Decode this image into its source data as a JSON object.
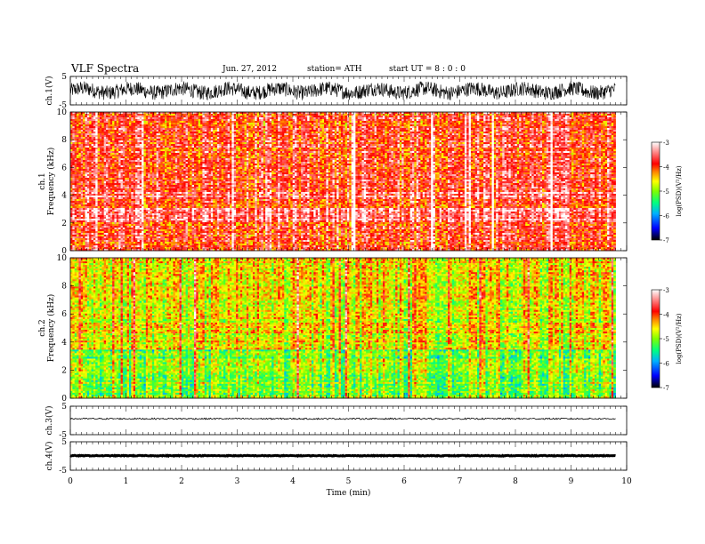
{
  "header": {
    "title": "VLF  Spectra",
    "date": "Jun. 27, 2012",
    "station": "station= ATH",
    "start": "start  UT  =   8  : 0  : 0"
  },
  "chart_data": [
    {
      "type": "line",
      "ylabel": "ch.1(V)",
      "ylim": [
        -5,
        5
      ],
      "yticks": [
        "5",
        "-5"
      ],
      "signal": "noisy waveform, mostly between -3 and +3 V"
    },
    {
      "type": "heatmap",
      "xlabel": "",
      "ylabel": "ch.1\nFrequency  (kHz)",
      "ylim": [
        0,
        10
      ],
      "yticks": [
        "0",
        "2",
        "4",
        "6",
        "8",
        "10"
      ],
      "colorbar": {
        "label": "log(PSD)(V²/Hz)",
        "ticks": [
          "-3",
          "-4",
          "-5",
          "-6",
          "-7"
        ],
        "range": [
          -7,
          -3
        ]
      },
      "dominant_log_psd": -3.8
    },
    {
      "type": "heatmap",
      "ylabel": "ch.2\nFrequency  (kHz)",
      "ylim": [
        0,
        10
      ],
      "yticks": [
        "0",
        "2",
        "4",
        "6",
        "8",
        "10"
      ],
      "colorbar": {
        "label": "log(PSD)(V²/Hz)",
        "ticks": [
          "-3",
          "-4",
          "-5",
          "-6",
          "-7"
        ],
        "range": [
          -7,
          -3
        ]
      },
      "dominant_log_psd": -4.6
    },
    {
      "type": "line",
      "ylabel": "ch.3(V)",
      "ylim": [
        -5,
        5
      ],
      "yticks": [
        "5",
        "-5"
      ],
      "signal": "flat near 0 V with small ripple"
    },
    {
      "type": "line",
      "ylabel": "ch.4(V)",
      "ylim": [
        -5,
        5
      ],
      "yticks": [
        "5",
        "-5"
      ],
      "signal": "thick flat line near 0 V"
    }
  ],
  "xaxis": {
    "label": "Time  (min)",
    "ticks": [
      "0",
      "1",
      "2",
      "3",
      "4",
      "5",
      "6",
      "7",
      "8",
      "9",
      "10"
    ],
    "xlim": [
      0,
      10
    ],
    "data_end_min": 9.8
  },
  "colors": {
    "scale": [
      "#000000",
      "#0000ff",
      "#00b0ff",
      "#00ff80",
      "#80ff00",
      "#ffff00",
      "#ff8000",
      "#ff0000",
      "#ffffff"
    ]
  }
}
